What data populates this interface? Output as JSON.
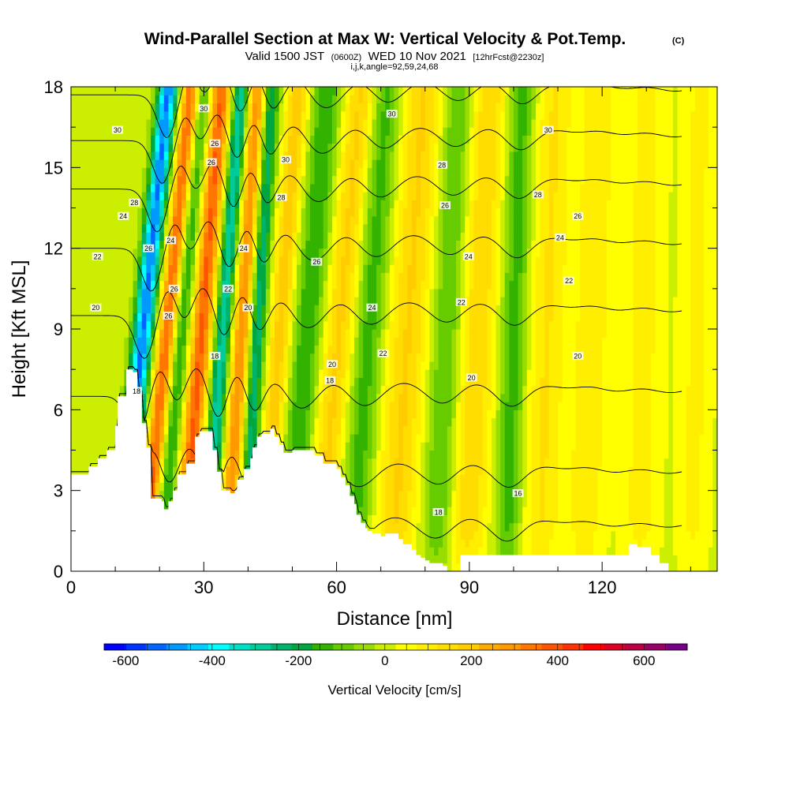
{
  "title": {
    "main": "Wind-Parallel Section at Max W: Vertical Velocity & Pot.Temp.",
    "copyright": "(C)",
    "valid_prefix": "Valid 1500 JST",
    "valid_utc": "(0600Z)",
    "valid_date": "WED 10 Nov 2021",
    "forecast": "[12hrFcst@2230z]",
    "indices": "i,j,k,angle=92,59,24,68"
  },
  "colors": {
    "terrain": "#ffffff",
    "contour": "#000000",
    "background": "#ffffff"
  },
  "chart_data": {
    "type": "heatmap",
    "xlabel": "Distance [nm]",
    "ylabel": "Height [Kft MSL]",
    "xlim": [
      0,
      146
    ],
    "ylim": [
      0,
      18
    ],
    "x_ticks": [
      0,
      30,
      60,
      90,
      120
    ],
    "x_tick_labels": [
      "0",
      "30",
      "60",
      "90",
      "120"
    ],
    "y_ticks": [
      0,
      3,
      6,
      9,
      12,
      15,
      18
    ],
    "y_tick_labels": [
      "0",
      "3",
      "6",
      "9",
      "12",
      "15",
      "18"
    ],
    "colorbar": {
      "label": "Vertical Velocity [cm/s]",
      "min": -650,
      "max": 700,
      "step": 50,
      "tick_values": [
        -600,
        -400,
        -200,
        0,
        200,
        400,
        600
      ],
      "tick_labels": [
        "-600",
        "-400",
        "-200",
        "0",
        "200",
        "400",
        "600"
      ],
      "colors": [
        "#0000ff",
        "#0033ff",
        "#0066ff",
        "#0099ff",
        "#00ccff",
        "#00ffff",
        "#00e0c8",
        "#00cc99",
        "#00b36b",
        "#00a640",
        "#33b300",
        "#66cc00",
        "#99dd00",
        "#ccee00",
        "#ffff00",
        "#ffee00",
        "#ffdd00",
        "#ffcc00",
        "#ffaa00",
        "#ff9900",
        "#ff7700",
        "#ff5500",
        "#ff3300",
        "#ff0000",
        "#dd0022",
        "#bb0044",
        "#990066",
        "#770088"
      ]
    },
    "terrain_profile": {
      "x": [
        0,
        4,
        4,
        6,
        6,
        8,
        8,
        10,
        10,
        10.5,
        10.5,
        12.5,
        12.5,
        14,
        14,
        15,
        15,
        16,
        16,
        17,
        17,
        18,
        18,
        20.5,
        20.5,
        21,
        21,
        22,
        22,
        23,
        23,
        24,
        24,
        26,
        26,
        28,
        28,
        29,
        29,
        32,
        32,
        33,
        33,
        34,
        34,
        36,
        36,
        37,
        37,
        37.5,
        37.5,
        39,
        39,
        40.5,
        40.5,
        41,
        41,
        42,
        42,
        43,
        43,
        45,
        45,
        46,
        46,
        47,
        47,
        48,
        48,
        50,
        50,
        55,
        55,
        57,
        57,
        60,
        60,
        61,
        61,
        62,
        62,
        63,
        63,
        64,
        64,
        64.5,
        64.5,
        65.5,
        65.5,
        66.5,
        66.5,
        67,
        67,
        68,
        68,
        70,
        70,
        71,
        71,
        74,
        74,
        75,
        75,
        77,
        77,
        78,
        78,
        79,
        79,
        80,
        80,
        81,
        81,
        84,
        84,
        85,
        85,
        88,
        88,
        126,
        126,
        127,
        127,
        128,
        128,
        131,
        131,
        133,
        133,
        135,
        135,
        138,
        138,
        139,
        139,
        140,
        140,
        146
      ],
      "z": [
        3.6,
        3.6,
        3.9,
        3.9,
        4.2,
        4.2,
        4.5,
        4.5,
        5.4,
        5.4,
        6.5,
        6.5,
        7.5,
        7.5,
        7.4,
        7.4,
        6.6,
        6.6,
        5.5,
        5.5,
        4.6,
        4.6,
        2.7,
        2.7,
        2.6,
        2.6,
        2.3,
        2.3,
        2.6,
        2.6,
        3.0,
        3.0,
        3.6,
        3.6,
        4.0,
        4.0,
        5.0,
        5.0,
        5.2,
        5.2,
        4.5,
        4.5,
        3.7,
        3.7,
        3.0,
        3.0,
        2.9,
        2.9,
        3.0,
        3.0,
        3.4,
        3.4,
        3.8,
        3.8,
        4.2,
        4.2,
        4.6,
        4.6,
        5.0,
        5.0,
        5.1,
        5.1,
        5.3,
        5.3,
        5.0,
        5.0,
        4.7,
        4.7,
        4.4,
        4.4,
        4.5,
        4.5,
        4.3,
        4.3,
        4.0,
        4.0,
        3.8,
        3.8,
        3.5,
        3.5,
        3.2,
        3.2,
        2.8,
        2.8,
        2.5,
        2.5,
        2.1,
        2.1,
        1.8,
        1.8,
        1.6,
        1.6,
        1.5,
        1.5,
        1.4,
        1.4,
        1.3,
        1.3,
        1.4,
        1.4,
        1.2,
        1.2,
        1.0,
        1.0,
        0.8,
        0.8,
        0.6,
        0.6,
        0.5,
        0.5,
        0.4,
        0.4,
        0.3,
        0.3,
        0.2,
        0.2,
        0.0,
        0.0,
        0.6,
        0.6,
        1.0,
        1.0,
        1.0,
        1.0,
        0.9,
        0.9,
        0.6,
        0.6,
        0.3,
        0.3,
        0.0,
        0.0,
        0.0
      ]
    },
    "w_bands": [
      {
        "x0": 14.5,
        "slope": 0.62,
        "w": 2.2,
        "amp": -540
      },
      {
        "x0": 20.0,
        "slope": 0.6,
        "w": 2.0,
        "amp": 380
      },
      {
        "x0": 23.5,
        "slope": 0.55,
        "w": 2.2,
        "amp": -200
      },
      {
        "x0": 28.0,
        "slope": 0.5,
        "w": 2.5,
        "amp": 380
      },
      {
        "x0": 33.0,
        "slope": 0.45,
        "w": 2.0,
        "amp": -340
      },
      {
        "x0": 37.5,
        "slope": 0.4,
        "w": 2.2,
        "amp": 320
      },
      {
        "x0": 41.0,
        "slope": 0.35,
        "w": 2.0,
        "amp": -280
      },
      {
        "x0": 46.0,
        "slope": 0.45,
        "w": 2.5,
        "amp": 200
      },
      {
        "x0": 52.0,
        "slope": 0.5,
        "w": 3.5,
        "amp": -180
      },
      {
        "x0": 59.0,
        "slope": 0.55,
        "w": 3.5,
        "amp": 180
      },
      {
        "x0": 66.0,
        "slope": 0.45,
        "w": 3.5,
        "amp": -160
      },
      {
        "x0": 75.0,
        "slope": 0.4,
        "w": 4.5,
        "amp": 170
      },
      {
        "x0": 84.0,
        "slope": 0.3,
        "w": 3.5,
        "amp": -140
      },
      {
        "x0": 91.0,
        "slope": 0.3,
        "w": 4.0,
        "amp": 160
      },
      {
        "x0": 99.5,
        "slope": 0.2,
        "w": 3.0,
        "amp": -160
      },
      {
        "x0": 107.0,
        "slope": 0.2,
        "w": 4.0,
        "amp": 120
      },
      {
        "x0": 117.0,
        "slope": 0.2,
        "w": 4.0,
        "amp": 110
      },
      {
        "x0": 129.0,
        "slope": 0.1,
        "w": 4.0,
        "amp": 90
      },
      {
        "x0": 141.0,
        "slope": 0.1,
        "w": 3.5,
        "amp": 80
      }
    ],
    "theta_contours": {
      "levels": [
        16,
        18,
        20,
        22,
        24,
        26,
        28,
        30
      ],
      "base_heights_kft": [
        1.5,
        3.5,
        6.5,
        9.5,
        12.0,
        14.2,
        16.0,
        17.7
      ],
      "wave_amplitude_kft": 1.2
    },
    "contour_labels": [
      {
        "text": "30",
        "x": 10.5,
        "y": 16.4
      },
      {
        "text": "30",
        "x": 30.0,
        "y": 17.2
      },
      {
        "text": "28",
        "x": 14.3,
        "y": 13.7
      },
      {
        "text": "24",
        "x": 11.8,
        "y": 13.2
      },
      {
        "text": "22",
        "x": 6.0,
        "y": 11.7
      },
      {
        "text": "20",
        "x": 5.6,
        "y": 9.8
      },
      {
        "text": "26",
        "x": 17.5,
        "y": 12.0
      },
      {
        "text": "24",
        "x": 22.5,
        "y": 12.3
      },
      {
        "text": "26",
        "x": 23.3,
        "y": 10.5
      },
      {
        "text": "26",
        "x": 22.0,
        "y": 9.5
      },
      {
        "text": "18",
        "x": 14.8,
        "y": 6.7
      },
      {
        "text": "26",
        "x": 32.5,
        "y": 15.9
      },
      {
        "text": "26",
        "x": 31.7,
        "y": 15.2
      },
      {
        "text": "24",
        "x": 39.0,
        "y": 12.0
      },
      {
        "text": "22",
        "x": 35.5,
        "y": 10.5
      },
      {
        "text": "20",
        "x": 40.0,
        "y": 9.8
      },
      {
        "text": "18",
        "x": 32.5,
        "y": 8.0
      },
      {
        "text": "30",
        "x": 48.5,
        "y": 15.3
      },
      {
        "text": "28",
        "x": 47.5,
        "y": 13.9
      },
      {
        "text": "26",
        "x": 55.5,
        "y": 11.5
      },
      {
        "text": "20",
        "x": 59.0,
        "y": 7.7
      },
      {
        "text": "18",
        "x": 58.5,
        "y": 7.1
      },
      {
        "text": "24",
        "x": 68.0,
        "y": 9.8
      },
      {
        "text": "22",
        "x": 70.5,
        "y": 8.1
      },
      {
        "text": "30",
        "x": 72.5,
        "y": 17.0
      },
      {
        "text": "28",
        "x": 83.8,
        "y": 15.1
      },
      {
        "text": "26",
        "x": 84.5,
        "y": 13.6
      },
      {
        "text": "24",
        "x": 89.8,
        "y": 11.7
      },
      {
        "text": "22",
        "x": 88.2,
        "y": 10.0
      },
      {
        "text": "20",
        "x": 90.5,
        "y": 7.2
      },
      {
        "text": "18",
        "x": 83.0,
        "y": 2.2
      },
      {
        "text": "30",
        "x": 107.8,
        "y": 16.4
      },
      {
        "text": "28",
        "x": 105.5,
        "y": 14.0
      },
      {
        "text": "26",
        "x": 114.5,
        "y": 13.2
      },
      {
        "text": "24",
        "x": 110.5,
        "y": 12.4
      },
      {
        "text": "22",
        "x": 112.5,
        "y": 10.8
      },
      {
        "text": "20",
        "x": 114.5,
        "y": 8.0
      },
      {
        "text": "16",
        "x": 101.0,
        "y": 2.9
      }
    ]
  }
}
